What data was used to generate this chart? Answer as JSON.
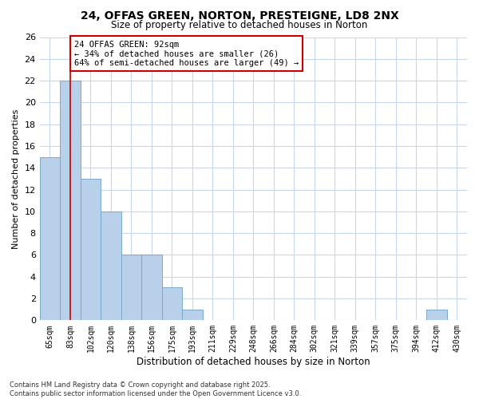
{
  "title_line1": "24, OFFAS GREEN, NORTON, PRESTEIGNE, LD8 2NX",
  "title_line2": "Size of property relative to detached houses in Norton",
  "xlabel": "Distribution of detached houses by size in Norton",
  "ylabel": "Number of detached properties",
  "categories": [
    "65sqm",
    "83sqm",
    "102sqm",
    "120sqm",
    "138sqm",
    "156sqm",
    "175sqm",
    "193sqm",
    "211sqm",
    "229sqm",
    "248sqm",
    "266sqm",
    "284sqm",
    "302sqm",
    "321sqm",
    "339sqm",
    "357sqm",
    "375sqm",
    "394sqm",
    "412sqm",
    "430sqm"
  ],
  "values": [
    15,
    22,
    13,
    10,
    6,
    6,
    3,
    1,
    0,
    0,
    0,
    0,
    0,
    0,
    0,
    0,
    0,
    0,
    0,
    1,
    0
  ],
  "bar_color": "#b8d0ea",
  "bar_edge_color": "#7aaac8",
  "red_line_x": 1,
  "annotation_title": "24 OFFAS GREEN: 92sqm",
  "annotation_line2": "← 34% of detached houses are smaller (26)",
  "annotation_line3": "64% of semi-detached houses are larger (49) →",
  "annotation_box_color": "#ffffff",
  "annotation_box_edge": "#cc0000",
  "ylim": [
    0,
    26
  ],
  "yticks": [
    0,
    2,
    4,
    6,
    8,
    10,
    12,
    14,
    16,
    18,
    20,
    22,
    24,
    26
  ],
  "footer_line1": "Contains HM Land Registry data © Crown copyright and database right 2025.",
  "footer_line2": "Contains public sector information licensed under the Open Government Licence v3.0.",
  "background_color": "#ffffff",
  "grid_color": "#c8d8ec"
}
